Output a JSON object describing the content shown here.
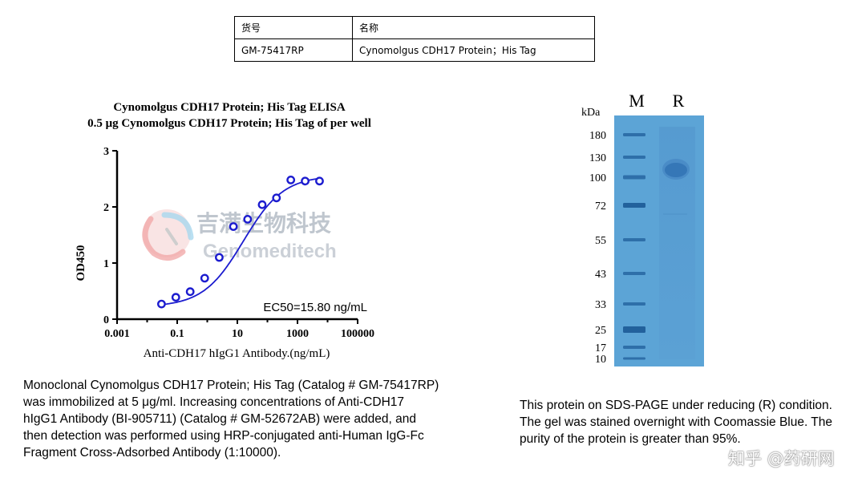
{
  "product_table": {
    "headers": [
      "货号",
      "名称"
    ],
    "row": [
      "GM-75417RP",
      "Cynomolgus CDH17 Protein；His Tag"
    ]
  },
  "chart_data": [
    {
      "type": "scatter",
      "title": "Cynomolgus CDH17 Protein; His Tag ELISA",
      "subtitle": "0.5 μg Cynomolgus CDH17 Protein; His Tag of  per well",
      "xlabel": "Anti-CDH17 hIgG1 Antibody.(ng/mL)",
      "ylabel": "OD450",
      "x_scale": "log",
      "xlim": [
        0.001,
        100000
      ],
      "ylim": [
        0,
        3
      ],
      "x_ticks": [
        "0.001",
        "0.1",
        "10",
        "1000",
        "100000"
      ],
      "y_ticks": [
        "0",
        "1",
        "2",
        "3"
      ],
      "x": [
        0.03,
        0.09,
        0.27,
        0.82,
        2.5,
        7.4,
        22,
        67,
        200,
        600,
        1800,
        5400
      ],
      "y": [
        0.27,
        0.39,
        0.49,
        0.73,
        1.1,
        1.65,
        1.78,
        2.04,
        2.16,
        2.48,
        2.46,
        2.46
      ],
      "fit": {
        "model": "4PL",
        "bottom": 0.22,
        "top": 2.56,
        "ec50": 15.8,
        "hill": 0.65
      },
      "annotation": "EC50=15.80 ng/mL",
      "point_style": "open-circle",
      "color": "#1c1ccf",
      "grid": false,
      "legend": "none",
      "watermark": {
        "logo": "genomeditech-logo",
        "text_cn": "吉满生物科技",
        "text_en": "Genomeditech"
      }
    }
  ],
  "gel": {
    "unit": "kDa",
    "lanes": [
      "M",
      "R"
    ],
    "markers": [
      "180",
      "130",
      "100",
      "72",
      "55",
      "43",
      "33",
      "25",
      "17",
      "10"
    ],
    "background_color": "#5ca4d6",
    "band_color": "#1f5e99"
  },
  "captions": {
    "elisa": "Monoclonal Cynomolgus CDH17 Protein; His Tag (Catalog # GM-75417RP) was immobilized at 5 μg/ml. Increasing concentrations of Anti-CDH17 hIgG1 Antibody (BI-905711) (Catalog # GM-52672AB) were added, and then detection was performed using HRP-conjugated anti-Human IgG-Fc Fragment Cross-Adsorbed Antibody (1:10000).",
    "gel": "This protein on SDS-PAGE under reducing (R) condition. The gel was stained overnight with Coomassie Blue. The purity of the protein is greater than 95%."
  },
  "page_watermark": "知乎 @药研网"
}
